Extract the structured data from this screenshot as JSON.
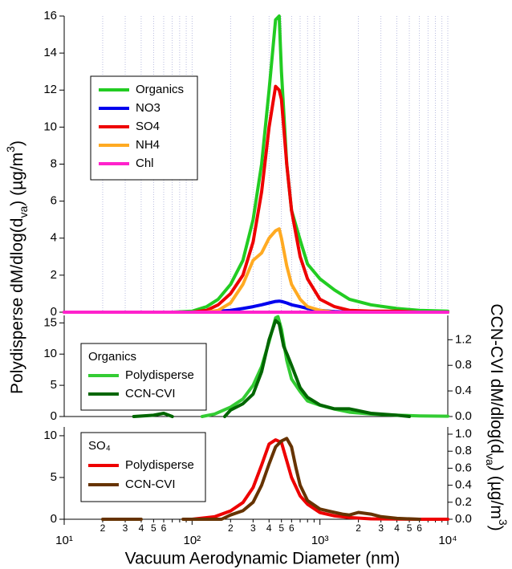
{
  "chart_data": [
    {
      "type": "line",
      "xlim": [
        10,
        10000
      ],
      "log_x": true,
      "grid": true,
      "ylim": [
        0,
        16
      ],
      "yticks": [
        0,
        2,
        4,
        6,
        8,
        10,
        12,
        14,
        16
      ],
      "x": [
        10,
        20,
        40,
        70,
        100,
        130,
        160,
        200,
        250,
        300,
        350,
        400,
        450,
        480,
        500,
        550,
        600,
        700,
        800,
        1000,
        1300,
        1700,
        2500,
        4000,
        6000,
        10000
      ],
      "series": [
        {
          "name": "Organics",
          "color": "#22cc22",
          "values": [
            0,
            0,
            0,
            0,
            0.05,
            0.3,
            0.7,
            1.5,
            2.8,
            5,
            8,
            12,
            15.8,
            16,
            13,
            8,
            5.5,
            3.9,
            2.6,
            1.8,
            1.2,
            0.7,
            0.4,
            0.2,
            0.1,
            0.05
          ]
        },
        {
          "name": "NO3",
          "color": "#0000ee",
          "values": [
            0,
            0,
            0,
            0,
            0,
            0,
            0.05,
            0.1,
            0.2,
            0.3,
            0.4,
            0.5,
            0.58,
            0.6,
            0.58,
            0.5,
            0.4,
            0.3,
            0.2,
            0.1,
            0.03,
            0,
            0,
            0,
            0,
            0
          ]
        },
        {
          "name": "SO4",
          "color": "#ee0000",
          "values": [
            0,
            0,
            0,
            0,
            0,
            0.1,
            0.4,
            1,
            2,
            3.8,
            6.5,
            10,
            12.2,
            12,
            11.5,
            8,
            5.5,
            3,
            1.8,
            0.7,
            0.3,
            0.1,
            0.05,
            0.05,
            0,
            0
          ]
        },
        {
          "name": "NH4",
          "color": "#ffaa22",
          "values": [
            0,
            0,
            0,
            0,
            0,
            0,
            0.1,
            0.5,
            1.5,
            2.8,
            3.2,
            4,
            4.4,
            4.5,
            4,
            2.5,
            1.5,
            0.7,
            0.3,
            0.1,
            0,
            0,
            0,
            0,
            0,
            0
          ]
        },
        {
          "name": "Chl",
          "color": "#ff22cc",
          "values": [
            0,
            0,
            0,
            0,
            0,
            0,
            0,
            0,
            0,
            0,
            0,
            0,
            0,
            0,
            0,
            0,
            0,
            0,
            0,
            0,
            0,
            0,
            0,
            0,
            0,
            0
          ]
        }
      ]
    },
    {
      "type": "line",
      "xlim": [
        10,
        10000
      ],
      "log_x": true,
      "ylim": [
        0,
        16.2
      ],
      "yticks": [
        0,
        5,
        10,
        15
      ],
      "y2lim": [
        0,
        1.58
      ],
      "y2ticks": [
        {
          "value": 0,
          "label": "0.0"
        },
        0.4,
        0.8,
        1.2
      ],
      "legend_title": "Organics",
      "series": [
        {
          "name": "Polydisperse",
          "color": "#33cc33",
          "x": [
            120,
            150,
            200,
            250,
            300,
            350,
            400,
            450,
            470,
            500,
            550,
            600,
            700,
            800,
            1000,
            1300,
            1700,
            2500,
            4000,
            6000,
            10000
          ],
          "values": [
            0,
            0.4,
            1.5,
            2.8,
            5,
            8,
            12,
            15.8,
            16,
            14,
            9,
            6,
            4,
            2.5,
            1.8,
            1.2,
            0.7,
            0.4,
            0.2,
            0.1,
            0.05
          ]
        },
        {
          "name": "CCN-CVI",
          "color": "#006600",
          "axis": "y2",
          "x": [
            35,
            50,
            60,
            70,
            120,
            180,
            200,
            250,
            300,
            350,
            400,
            450,
            480,
            520,
            560,
            600,
            700,
            800,
            1000,
            1300,
            1700,
            2500,
            4000,
            5000
          ],
          "values": [
            0,
            0.02,
            0.05,
            0,
            null,
            0,
            0.1,
            0.2,
            0.35,
            0.7,
            1.2,
            1.5,
            1.45,
            1.1,
            0.95,
            0.8,
            0.45,
            0.3,
            0.18,
            0.12,
            0.12,
            0.05,
            0.02,
            0
          ]
        }
      ]
    },
    {
      "type": "line",
      "xlim": [
        10,
        10000
      ],
      "log_x": true,
      "ylim": [
        0,
        11.05
      ],
      "yticks": [
        0,
        5,
        10
      ],
      "y2lim": [
        0,
        1.085
      ],
      "y2ticks": [
        {
          "value": 0,
          "label": "0.0"
        },
        0.2,
        0.4,
        0.6,
        0.8,
        {
          "value": 1,
          "label": "1.0"
        }
      ],
      "legend_title": "SO₄",
      "xlabel": "Vacuum Aerodynamic Diameter (nm)",
      "xticks": [
        {
          "value": 10,
          "label": "10¹"
        },
        {
          "value": 100,
          "label": "10²"
        },
        {
          "value": 1000,
          "label": "10³"
        },
        {
          "value": 10000,
          "label": "10⁴"
        }
      ],
      "xminor": [
        {
          "value": 20,
          "label": "2"
        },
        {
          "value": 30,
          "label": "3"
        },
        {
          "value": 40,
          "label": "4"
        },
        {
          "value": 50,
          "label": "5"
        },
        {
          "value": 60,
          "label": "6"
        },
        {
          "value": 70,
          "label": null
        },
        {
          "value": 80,
          "label": null
        },
        {
          "value": 90,
          "label": null
        },
        {
          "value": 200,
          "label": "2"
        },
        {
          "value": 300,
          "label": "3"
        },
        {
          "value": 400,
          "label": "4"
        },
        {
          "value": 500,
          "label": "5"
        },
        {
          "value": 600,
          "label": "6"
        },
        {
          "value": 700,
          "label": null
        },
        {
          "value": 800,
          "label": null
        },
        {
          "value": 900,
          "label": null
        },
        {
          "value": 2000,
          "label": "2"
        },
        {
          "value": 3000,
          "label": "3"
        },
        {
          "value": 4000,
          "label": "4"
        },
        {
          "value": 5000,
          "label": "5"
        },
        {
          "value": 6000,
          "label": "6"
        },
        {
          "value": 7000,
          "label": null
        },
        {
          "value": 8000,
          "label": null
        },
        {
          "value": 9000,
          "label": null
        }
      ],
      "series": [
        {
          "name": "Polydisperse",
          "color": "#ee0000",
          "x": [
            100,
            150,
            200,
            250,
            300,
            350,
            400,
            450,
            500,
            550,
            600,
            700,
            800,
            1000,
            1300,
            1700,
            2500,
            4000,
            6000,
            10000
          ],
          "values": [
            0,
            0.3,
            1,
            2,
            3.8,
            6.5,
            9,
            9.5,
            9.2,
            7,
            5,
            2.8,
            1.8,
            0.8,
            0.4,
            0.2,
            0.05,
            0.02,
            0,
            0
          ]
        },
        {
          "name": "CCN-CVI",
          "color": "#663300",
          "axis": "y2",
          "x": [
            20,
            40,
            60,
            85,
            100,
            170,
            200,
            250,
            300,
            350,
            400,
            450,
            500,
            550,
            600,
            650,
            700,
            800,
            1000,
            1300,
            1500,
            1700,
            2000,
            2500,
            3000,
            4000,
            6000
          ],
          "values": [
            0,
            0,
            null,
            0,
            0,
            0,
            0.05,
            0.1,
            0.2,
            0.4,
            0.65,
            0.85,
            0.92,
            0.95,
            0.85,
            0.6,
            0.4,
            0.22,
            0.12,
            0.08,
            0.06,
            0.05,
            0.08,
            0.06,
            0.03,
            0.01,
            0
          ]
        }
      ]
    }
  ],
  "ylabel": [
    {
      "text": "Polydisperse dM/dlog(d"
    },
    {
      "text": "va",
      "sub": true
    },
    {
      "text": ") (µg/m"
    },
    {
      "text": "3",
      "sup": true
    },
    {
      "text": ")"
    }
  ],
  "y2label": [
    {
      "text": "CCN-CVI dM/dlog(d"
    },
    {
      "text": "va",
      "sub": true
    },
    {
      "text": ") (µg/m"
    },
    {
      "text": "3",
      "sup": true
    },
    {
      "text": ")"
    }
  ]
}
